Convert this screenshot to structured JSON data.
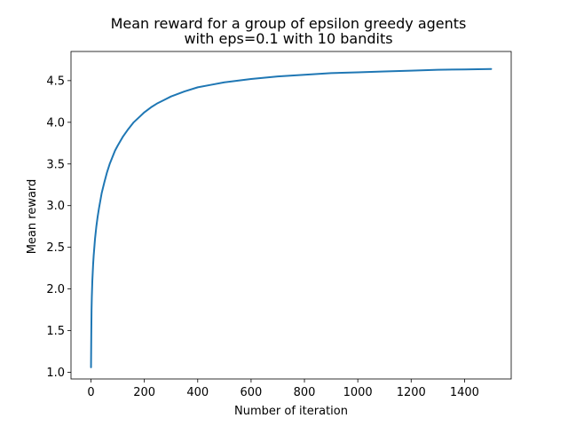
{
  "chart_data": {
    "type": "line",
    "title": "Mean reward for a group of epsilon greedy agents\nwith eps=0.1 with 10 bandits",
    "xlabel": "Number of iteration",
    "ylabel": "Mean reward",
    "xlim": [
      -75,
      1575
    ],
    "ylim": [
      0.92,
      4.85
    ],
    "x_ticks": [
      0,
      200,
      400,
      600,
      800,
      1000,
      1200,
      1400
    ],
    "y_ticks": [
      1.0,
      1.5,
      2.0,
      2.5,
      3.0,
      3.5,
      4.0,
      4.5
    ],
    "grid": false,
    "series": [
      {
        "color": "#1f77b4",
        "x": [
          0,
          1,
          2,
          3,
          5,
          8,
          10,
          15,
          20,
          25,
          30,
          40,
          50,
          60,
          70,
          80,
          90,
          100,
          120,
          140,
          160,
          180,
          200,
          225,
          250,
          275,
          300,
          350,
          400,
          450,
          500,
          550,
          600,
          700,
          800,
          900,
          1000,
          1100,
          1200,
          1300,
          1400,
          1500
        ],
        "y": [
          1.06,
          1.45,
          1.75,
          1.9,
          2.1,
          2.3,
          2.4,
          2.6,
          2.75,
          2.87,
          2.97,
          3.15,
          3.28,
          3.4,
          3.5,
          3.58,
          3.66,
          3.72,
          3.83,
          3.92,
          4.0,
          4.06,
          4.12,
          4.18,
          4.23,
          4.27,
          4.31,
          4.37,
          4.42,
          4.45,
          4.48,
          4.5,
          4.52,
          4.55,
          4.57,
          4.59,
          4.6,
          4.61,
          4.62,
          4.63,
          4.635,
          4.64
        ]
      }
    ]
  }
}
